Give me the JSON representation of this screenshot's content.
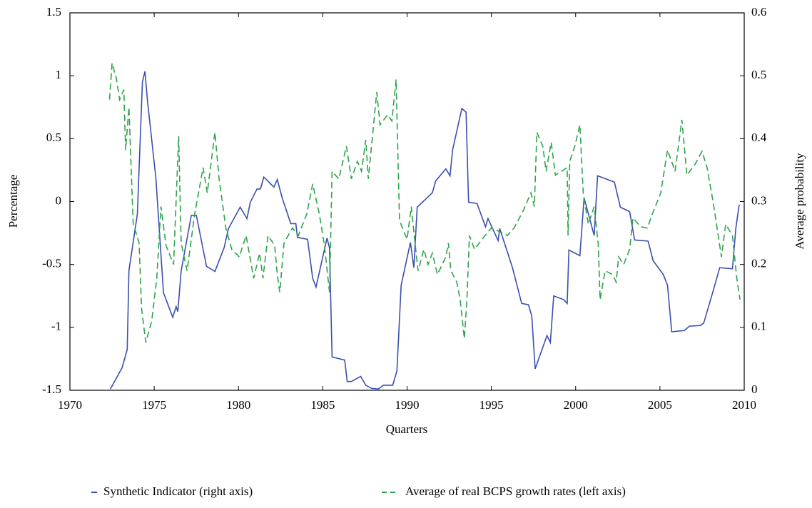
{
  "chart_data": {
    "type": "line",
    "xlabel": "Quarters",
    "ylabel": "Percentage",
    "y2label": "Average probability",
    "xlim": [
      1970,
      2010
    ],
    "xticks": [
      1970,
      1975,
      1980,
      1985,
      1990,
      1995,
      2000,
      2005,
      2010
    ],
    "ylim": [
      -1.5,
      1.5
    ],
    "yticks": [
      1.5,
      1,
      0.5,
      0,
      -0.5,
      -1,
      -1.5
    ],
    "y2lim": [
      0,
      0.6
    ],
    "y2ticks": [
      0.6,
      0.5,
      0.4,
      0.3,
      0.2,
      0.1,
      0
    ],
    "legend": "bottom",
    "series": [
      {
        "name": "Synthetic Indicator (right axis)",
        "color": "#3a4fae",
        "axis": "y2",
        "dash": false,
        "x": [
          1972.4,
          1973.1,
          1973.4,
          1973.5,
          1974.0,
          1974.3,
          1974.45,
          1974.6,
          1975.1,
          1975.55,
          1976.1,
          1976.3,
          1976.4,
          1976.6,
          1977.2,
          1977.5,
          1978.1,
          1978.6,
          1979.15,
          1979.4,
          1980.1,
          1980.5,
          1980.7,
          1981.1,
          1981.3,
          1981.5,
          1982.1,
          1982.3,
          1982.6,
          1983.1,
          1983.4,
          1983.5,
          1984.1,
          1984.4,
          1984.6,
          1985.25,
          1985.4,
          1985.55,
          1986.3,
          1986.45,
          1986.7,
          1987.25,
          1987.55,
          1987.9,
          1988.3,
          1988.6,
          1989.15,
          1989.4,
          1989.65,
          1990.2,
          1990.4,
          1990.6,
          1991.5,
          1991.7,
          1992.3,
          1992.55,
          1992.7,
          1993.25,
          1993.5,
          1993.65,
          1994.15,
          1994.65,
          1994.8,
          1995.4,
          1995.5,
          1996.25,
          1996.8,
          1997.2,
          1997.4,
          1997.6,
          1998.3,
          1998.5,
          1998.7,
          1999.3,
          1999.5,
          1999.6,
          2000.25,
          2000.5,
          2001.1,
          2001.3,
          2002.3,
          2002.65,
          2003.2,
          2003.5,
          2004.3,
          2004.6,
          2005.2,
          2005.45,
          2005.7,
          2006.45,
          2006.75,
          2007.4,
          2007.6,
          2008.2,
          2008.55,
          2009.3,
          2009.5,
          2009.7
        ],
        "values": [
          0.002,
          0.036,
          0.065,
          0.19,
          0.28,
          0.49,
          0.507,
          0.46,
          0.337,
          0.155,
          0.116,
          0.133,
          0.125,
          0.19,
          0.278,
          0.278,
          0.197,
          0.189,
          0.227,
          0.257,
          0.291,
          0.273,
          0.299,
          0.32,
          0.32,
          0.339,
          0.323,
          0.335,
          0.305,
          0.265,
          0.265,
          0.243,
          0.24,
          0.178,
          0.164,
          0.242,
          0.226,
          0.053,
          0.048,
          0.014,
          0.014,
          0.022,
          0.008,
          0.003,
          0.002,
          0.008,
          0.008,
          0.031,
          0.167,
          0.235,
          0.195,
          0.291,
          0.314,
          0.333,
          0.352,
          0.341,
          0.382,
          0.448,
          0.442,
          0.299,
          0.297,
          0.26,
          0.273,
          0.238,
          0.257,
          0.195,
          0.138,
          0.136,
          0.118,
          0.034,
          0.087,
          0.076,
          0.15,
          0.144,
          0.138,
          0.223,
          0.214,
          0.306,
          0.246,
          0.341,
          0.331,
          0.291,
          0.284,
          0.239,
          0.237,
          0.206,
          0.184,
          0.167,
          0.093,
          0.095,
          0.102,
          0.103,
          0.107,
          0.162,
          0.195,
          0.193,
          0.257,
          0.295
        ]
      },
      {
        "name": "Average of real BCPS growth rates (left axis)",
        "color": "#2ea44a",
        "axis": "y",
        "dash": true,
        "x": [
          1972.35,
          1972.5,
          1972.75,
          1972.95,
          1973.2,
          1973.3,
          1973.5,
          1973.75,
          1974.1,
          1974.25,
          1974.5,
          1974.85,
          1975.15,
          1975.4,
          1975.7,
          1976.15,
          1976.45,
          1976.6,
          1976.95,
          1977.4,
          1977.9,
          1978.15,
          1978.6,
          1978.85,
          1979.25,
          1979.6,
          1980.05,
          1980.45,
          1980.9,
          1981.25,
          1981.45,
          1981.75,
          1982.15,
          1982.3,
          1982.45,
          1982.7,
          1983.2,
          1983.55,
          1984.05,
          1984.4,
          1984.8,
          1985.1,
          1985.4,
          1985.55,
          1985.95,
          1986.4,
          1986.7,
          1987.05,
          1987.3,
          1987.55,
          1987.7,
          1988.2,
          1988.4,
          1988.85,
          1989.1,
          1989.35,
          1989.55,
          1990.0,
          1990.25,
          1990.4,
          1990.65,
          1991.0,
          1991.25,
          1991.5,
          1991.8,
          1992.3,
          1992.45,
          1992.6,
          1992.95,
          1993.15,
          1993.4,
          1993.55,
          1993.7,
          1994.0,
          1994.45,
          1995.0,
          1995.5,
          1995.95,
          1996.35,
          1996.9,
          1997.35,
          1997.55,
          1997.7,
          1998.05,
          1998.25,
          1998.55,
          1998.8,
          1999.15,
          1999.5,
          1999.55,
          1999.65,
          1999.95,
          2000.25,
          2000.45,
          2000.75,
          2001.1,
          2001.35,
          2001.45,
          2001.75,
          2002.2,
          2002.4,
          2002.55,
          2002.85,
          2003.2,
          2003.4,
          2003.85,
          2004.25,
          2004.55,
          2005.05,
          2005.45,
          2005.9,
          2006.3,
          2006.6,
          2007.1,
          2007.5,
          2007.8,
          2008.2,
          2008.65,
          2008.9,
          2009.3,
          2009.55,
          2009.75
        ],
        "values": [
          0.81,
          1.1,
          0.98,
          0.81,
          0.89,
          0.41,
          0.75,
          -0.17,
          -0.33,
          -0.85,
          -1.12,
          -0.95,
          -0.61,
          -0.04,
          -0.35,
          -0.5,
          0.52,
          -0.33,
          -0.55,
          -0.1,
          0.27,
          0.07,
          0.55,
          0.18,
          -0.21,
          -0.38,
          -0.44,
          -0.27,
          -0.61,
          -0.41,
          -0.61,
          -0.27,
          -0.35,
          -0.58,
          -0.72,
          -0.33,
          -0.21,
          -0.27,
          -0.1,
          0.14,
          -0.1,
          -0.35,
          -0.72,
          0.24,
          0.18,
          0.44,
          0.18,
          0.32,
          0.24,
          0.49,
          0.18,
          0.87,
          0.61,
          0.69,
          0.64,
          0.97,
          -0.15,
          -0.3,
          -0.04,
          -0.24,
          -0.55,
          -0.38,
          -0.5,
          -0.41,
          -0.58,
          -0.44,
          -0.33,
          -0.55,
          -0.64,
          -0.78,
          -1.09,
          -0.78,
          -0.27,
          -0.38,
          -0.3,
          -0.21,
          -0.24,
          -0.27,
          -0.21,
          -0.07,
          0.07,
          -0.04,
          0.55,
          0.44,
          0.24,
          0.47,
          0.21,
          0.24,
          0.27,
          -0.27,
          0.32,
          0.44,
          0.61,
          0.07,
          -0.18,
          -0.04,
          -0.35,
          -0.78,
          -0.55,
          -0.58,
          -0.64,
          -0.44,
          -0.5,
          -0.38,
          -0.13,
          -0.2,
          -0.21,
          -0.1,
          0.07,
          0.41,
          0.24,
          0.65,
          0.21,
          0.3,
          0.4,
          0.27,
          -0.04,
          -0.44,
          -0.18,
          -0.27,
          -0.6,
          -0.78
        ]
      }
    ]
  }
}
